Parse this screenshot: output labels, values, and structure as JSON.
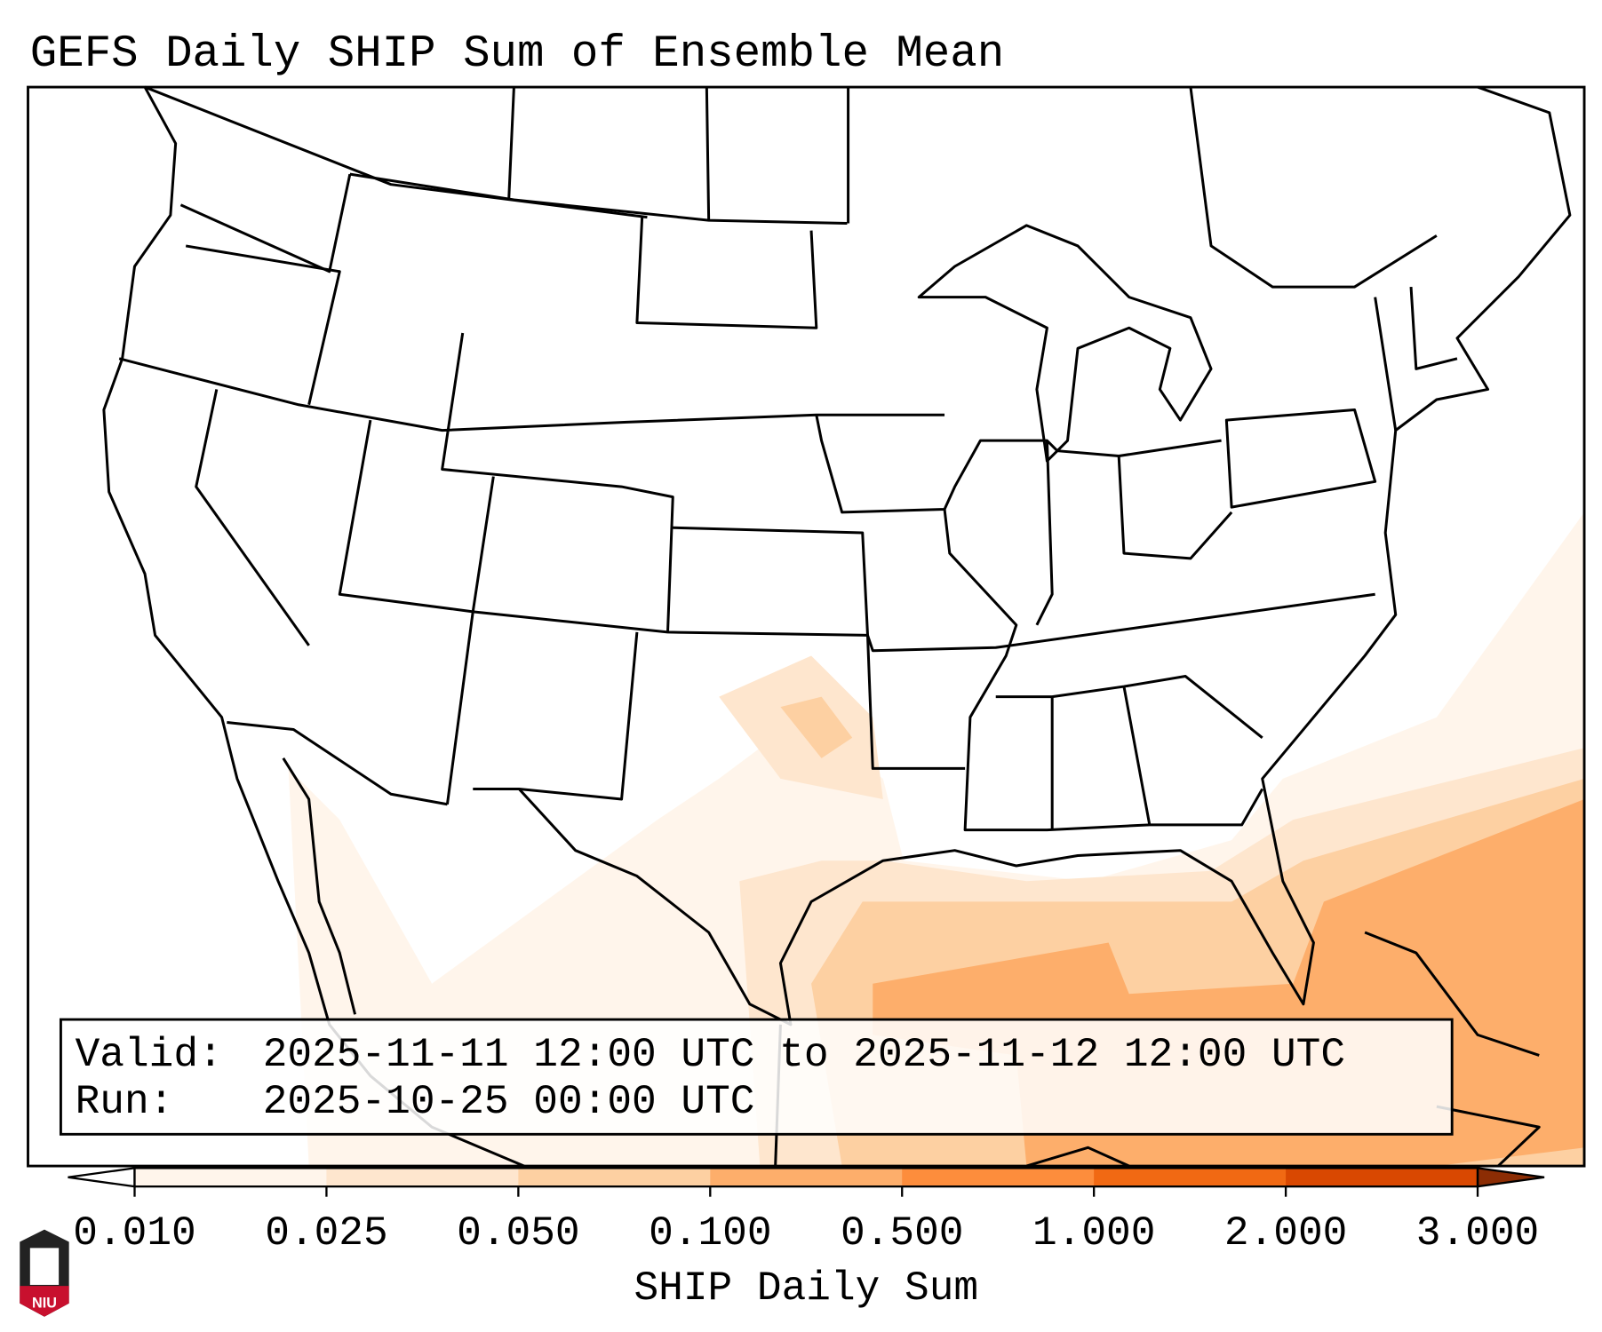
{
  "title": "GEFS Daily SHIP Sum of Ensemble Mean",
  "info": {
    "valid_label": "Valid:",
    "valid_value": "2025-11-11 12:00 UTC to 2025-11-12 12:00 UTC",
    "run_label": "Run:",
    "run_value": "2025-10-25 00:00 UTC"
  },
  "colorbar": {
    "label": "SHIP Daily Sum",
    "ticks": [
      "0.010",
      "0.025",
      "0.050",
      "0.100",
      "0.500",
      "1.000",
      "2.000",
      "3.000"
    ],
    "colors": [
      "#fff5eb",
      "#fee6ce",
      "#fdd0a2",
      "#fdae6b",
      "#fd8d3c",
      "#f16913",
      "#d94801",
      "#8c2d04"
    ],
    "under_color": "#ffffff"
  },
  "logo": {
    "text": "NIU",
    "color": "#c8102e"
  }
}
